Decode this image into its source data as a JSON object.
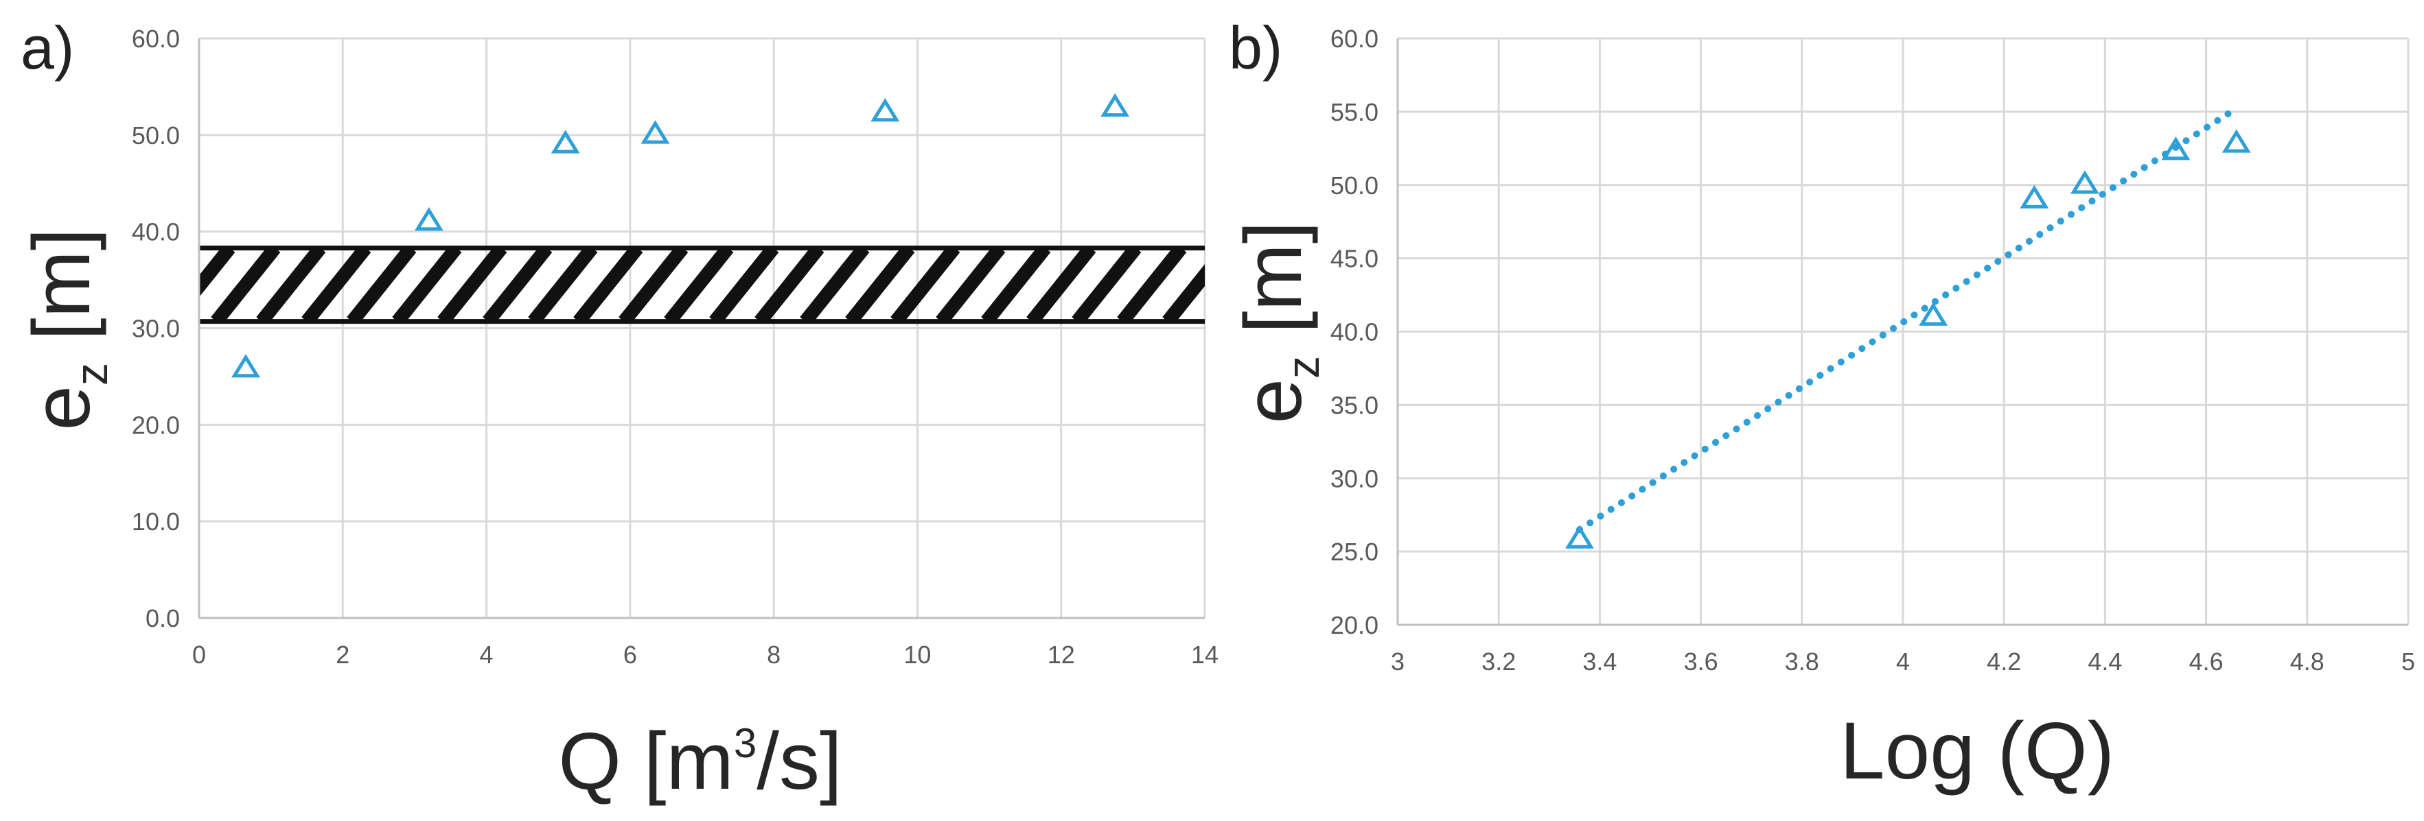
{
  "chart_data": [
    {
      "panel_label": "a)",
      "type": "scatter",
      "xlabel": {
        "base": "Q [m",
        "sup": "3",
        "tail": "/s]"
      },
      "ylabel": {
        "base": "e",
        "sub": "z",
        "tail": " [m]"
      },
      "xlim": [
        0,
        14
      ],
      "ylim": [
        0,
        60
      ],
      "x_ticks": [
        "0",
        "2",
        "4",
        "6",
        "8",
        "10",
        "12",
        "14"
      ],
      "y_ticks": [
        "0.0",
        "10.0",
        "20.0",
        "30.0",
        "40.0",
        "50.0",
        "60.0"
      ],
      "grid": true,
      "band": {
        "y_from": 30.7,
        "y_to": 38.3,
        "pattern": "diagonal-hatch"
      },
      "series": [
        {
          "marker": "triangle",
          "color": "#2e9fd8",
          "points": [
            [
              0.65,
              25.8
            ],
            [
              3.2,
              41.0
            ],
            [
              5.1,
              49.0
            ],
            [
              6.35,
              50.0
            ],
            [
              9.55,
              52.3
            ],
            [
              12.75,
              52.8
            ]
          ]
        }
      ]
    },
    {
      "panel_label": "b)",
      "type": "scatter",
      "xlabel": {
        "base": "Log (Q)"
      },
      "ylabel": {
        "base": "e",
        "sub": "z",
        "tail": " [m]"
      },
      "xlim": [
        3,
        5
      ],
      "ylim": [
        20,
        60
      ],
      "x_ticks": [
        "3",
        "3.2",
        "3.4",
        "3.6",
        "3.8",
        "4",
        "4.2",
        "4.4",
        "4.6",
        "4.8",
        "5"
      ],
      "y_ticks": [
        "20.0",
        "25.0",
        "30.0",
        "35.0",
        "40.0",
        "45.0",
        "50.0",
        "55.0",
        "60.0"
      ],
      "grid": true,
      "trendline": {
        "type": "linear",
        "style": "dotted",
        "x_from": 3.36,
        "x_to": 4.65,
        "y_from": 26.5,
        "y_to": 55.0
      },
      "series": [
        {
          "marker": "triangle",
          "color": "#2e9fd8",
          "points": [
            [
              3.36,
              25.8
            ],
            [
              4.06,
              41.0
            ],
            [
              4.26,
              49.0
            ],
            [
              4.36,
              50.0
            ],
            [
              4.54,
              52.3
            ],
            [
              4.66,
              52.8
            ]
          ]
        }
      ]
    }
  ]
}
